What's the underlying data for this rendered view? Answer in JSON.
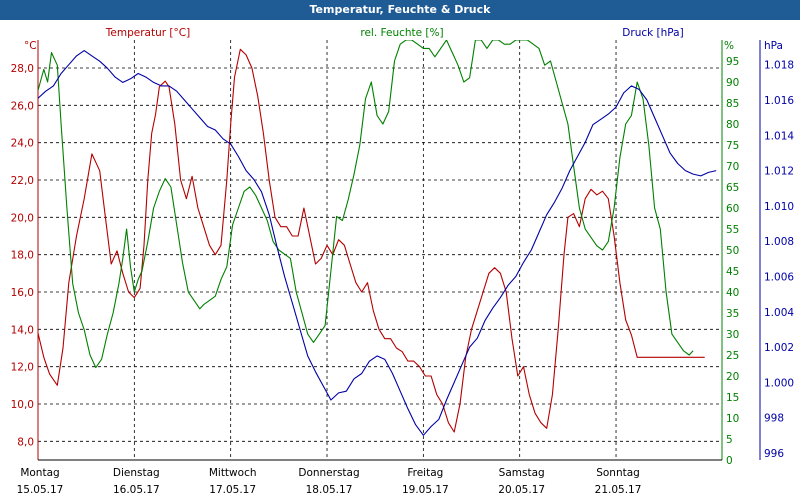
{
  "window": {
    "title": "Temperatur, Feuchte & Druck"
  },
  "colors": {
    "title_bar": "#1f5c96",
    "temperature": "#b40000",
    "humidity": "#008000",
    "pressure": "#0000a8",
    "grid": "#000000",
    "axis_text": "#000000"
  },
  "chart_data": {
    "type": "line",
    "title": "Temperatur, Feuchte & Druck",
    "grid": true,
    "x_labels": [
      {
        "day": "Montag",
        "date": "15.05.17"
      },
      {
        "day": "Dienstag",
        "date": "16.05.17"
      },
      {
        "day": "Mittwoch",
        "date": "17.05.17"
      },
      {
        "day": "Donnerstag",
        "date": "18.05.17"
      },
      {
        "day": "Freitag",
        "date": "19.05.17"
      },
      {
        "day": "Samstag",
        "date": "20.05.17"
      },
      {
        "day": "Sonntag",
        "date": "21.05.17"
      }
    ],
    "x_range": [
      0,
      7.1
    ],
    "axes": {
      "temperature": {
        "label": "Temperatur [°C]",
        "unit": "°C",
        "range": [
          7,
          29.5
        ],
        "ticks": [
          "8,0",
          "10,0",
          "12,0",
          "14,0",
          "16,0",
          "18,0",
          "20,0",
          "22,0",
          "24,0",
          "26,0",
          "28,0"
        ]
      },
      "humidity": {
        "label": "rel. Feuchte [%]",
        "unit": "%",
        "range": [
          0,
          100
        ],
        "ticks": [
          "0",
          "5",
          "10",
          "15",
          "20",
          "25",
          "30",
          "35",
          "40",
          "45",
          "50",
          "55",
          "60",
          "65",
          "70",
          "75",
          "80",
          "85",
          "90",
          "95"
        ]
      },
      "pressure": {
        "label": "Druck [hPa]",
        "unit": "hPa",
        "range": [
          995.6,
          1019.4
        ],
        "ticks": [
          "996",
          "998",
          "1.000",
          "1.002",
          "1.004",
          "1.006",
          "1.008",
          "1.010",
          "1.012",
          "1.014",
          "1.016",
          "1.018"
        ]
      }
    },
    "series": [
      {
        "name": "Temperatur [°C]",
        "axis": "temperature",
        "color": "#b40000",
        "x": [
          0,
          0.06,
          0.12,
          0.2,
          0.26,
          0.32,
          0.4,
          0.48,
          0.56,
          0.64,
          0.7,
          0.76,
          0.82,
          0.88,
          0.94,
          1.0,
          1.06,
          1.1,
          1.14,
          1.18,
          1.22,
          1.26,
          1.32,
          1.36,
          1.42,
          1.48,
          1.54,
          1.6,
          1.66,
          1.72,
          1.78,
          1.84,
          1.9,
          1.96,
          2.0,
          2.04,
          2.1,
          2.16,
          2.22,
          2.28,
          2.34,
          2.4,
          2.46,
          2.52,
          2.58,
          2.64,
          2.7,
          2.76,
          2.82,
          2.88,
          2.94,
          3.0,
          3.06,
          3.12,
          3.18,
          3.24,
          3.3,
          3.36,
          3.42,
          3.48,
          3.54,
          3.6,
          3.66,
          3.72,
          3.78,
          3.84,
          3.9,
          3.96,
          4.02,
          4.08,
          4.14,
          4.2,
          4.26,
          4.32,
          4.38,
          4.44,
          4.5,
          4.56,
          4.62,
          4.68,
          4.74,
          4.8,
          4.86,
          4.92,
          4.98,
          5.04,
          5.1,
          5.16,
          5.22,
          5.28,
          5.34,
          5.4,
          5.46,
          5.5,
          5.56,
          5.62,
          5.68,
          5.74,
          5.8,
          5.86,
          5.92,
          5.98,
          6.04,
          6.1,
          6.16,
          6.22,
          6.28,
          6.34,
          6.4,
          6.46,
          6.52,
          6.58,
          6.64,
          6.7,
          6.76,
          6.8,
          6.86,
          6.92
        ],
        "values": [
          13.8,
          12.5,
          11.6,
          11.0,
          13.0,
          16.5,
          19.0,
          21.0,
          23.4,
          22.5,
          20.0,
          17.5,
          18.2,
          17.0,
          16.0,
          15.7,
          16.2,
          18.5,
          22.0,
          24.5,
          25.5,
          27.0,
          27.3,
          27.0,
          25.0,
          22.0,
          21.0,
          22.2,
          20.5,
          19.5,
          18.5,
          18.0,
          18.5,
          22.0,
          25.0,
          27.5,
          29.0,
          28.7,
          28.0,
          26.5,
          24.5,
          22.0,
          20.0,
          19.5,
          19.5,
          19.0,
          19.0,
          20.5,
          19.0,
          17.5,
          17.8,
          18.5,
          18.0,
          18.8,
          18.5,
          17.5,
          16.5,
          16.0,
          16.5,
          15.0,
          14.0,
          13.5,
          13.5,
          13.0,
          12.8,
          12.3,
          12.3,
          12.0,
          11.5,
          11.5,
          10.5,
          10.0,
          9.0,
          8.5,
          10.0,
          12.5,
          14.0,
          15.0,
          16.0,
          17.0,
          17.3,
          17.0,
          16.0,
          13.5,
          11.5,
          12.0,
          10.5,
          9.5,
          9.0,
          8.7,
          10.5,
          14.0,
          18.0,
          20.0,
          20.2,
          19.5,
          21.0,
          21.5,
          21.2,
          21.4,
          21.0,
          19.0,
          16.5,
          14.5,
          13.7,
          12.5,
          12.5,
          12.5,
          12.5,
          12.5,
          12.5,
          12.5,
          12.5,
          12.5,
          12.5,
          12.5,
          12.5,
          12.5
        ]
      },
      {
        "name": "rel. Feuchte [%]",
        "axis": "humidity",
        "color": "#008000",
        "x": [
          0,
          0.06,
          0.1,
          0.14,
          0.2,
          0.24,
          0.3,
          0.36,
          0.42,
          0.48,
          0.54,
          0.6,
          0.66,
          0.72,
          0.78,
          0.84,
          0.88,
          0.92,
          0.96,
          1.0,
          1.04,
          1.08,
          1.14,
          1.2,
          1.26,
          1.32,
          1.38,
          1.44,
          1.5,
          1.56,
          1.62,
          1.68,
          1.72,
          1.78,
          1.84,
          1.9,
          1.96,
          2.02,
          2.08,
          2.14,
          2.2,
          2.26,
          2.32,
          2.38,
          2.44,
          2.5,
          2.56,
          2.62,
          2.68,
          2.74,
          2.8,
          2.86,
          2.92,
          2.98,
          3.04,
          3.1,
          3.16,
          3.22,
          3.28,
          3.34,
          3.4,
          3.46,
          3.52,
          3.58,
          3.64,
          3.7,
          3.76,
          3.82,
          3.88,
          3.94,
          4.0,
          4.06,
          4.12,
          4.18,
          4.24,
          4.3,
          4.36,
          4.42,
          4.48,
          4.54,
          4.6,
          4.66,
          4.72,
          4.78,
          4.84,
          4.9,
          4.96,
          5.02,
          5.08,
          5.14,
          5.2,
          5.26,
          5.32,
          5.38,
          5.44,
          5.5,
          5.56,
          5.62,
          5.68,
          5.74,
          5.8,
          5.86,
          5.92,
          5.98,
          6.04,
          6.1,
          6.16,
          6.22,
          6.28,
          6.34,
          6.4,
          6.46,
          6.52,
          6.58,
          6.64,
          6.7,
          6.76,
          6.8
        ],
        "values": [
          88,
          93,
          90,
          97,
          94,
          80,
          60,
          42,
          35,
          31,
          25,
          22,
          24,
          30,
          35,
          42,
          48,
          55,
          46,
          40,
          43,
          45,
          52,
          60,
          64,
          67,
          65,
          56,
          47,
          40,
          38,
          36,
          37,
          38,
          39,
          43,
          46,
          56,
          60,
          64,
          65,
          63,
          60,
          57,
          52,
          50,
          49,
          48,
          40,
          35,
          30,
          28,
          30,
          32,
          45,
          58,
          57,
          62,
          68,
          75,
          86,
          90,
          82,
          80,
          83,
          95,
          99,
          100,
          100,
          99,
          98,
          98,
          96,
          98,
          100,
          97,
          94,
          90,
          91,
          100,
          100,
          98,
          100,
          100,
          99,
          99,
          100,
          100,
          100,
          99,
          98,
          94,
          95,
          90,
          85,
          80,
          70,
          60,
          55,
          53,
          51,
          50,
          52,
          60,
          72,
          80,
          82,
          90,
          86,
          75,
          60,
          55,
          40,
          30,
          28,
          26,
          25,
          26
        ]
      },
      {
        "name": "Druck [hPa]",
        "axis": "pressure",
        "color": "#0000a8",
        "x": [
          0,
          0.08,
          0.16,
          0.24,
          0.32,
          0.4,
          0.48,
          0.56,
          0.64,
          0.72,
          0.8,
          0.88,
          0.96,
          1.04,
          1.12,
          1.2,
          1.28,
          1.36,
          1.44,
          1.52,
          1.6,
          1.68,
          1.76,
          1.84,
          1.92,
          2.0,
          2.08,
          2.16,
          2.24,
          2.32,
          2.4,
          2.48,
          2.56,
          2.64,
          2.72,
          2.8,
          2.88,
          2.96,
          3.04,
          3.12,
          3.2,
          3.28,
          3.36,
          3.44,
          3.52,
          3.6,
          3.68,
          3.76,
          3.84,
          3.92,
          4.0,
          4.08,
          4.16,
          4.24,
          4.32,
          4.4,
          4.48,
          4.56,
          4.64,
          4.72,
          4.8,
          4.88,
          4.96,
          5.04,
          5.12,
          5.2,
          5.28,
          5.36,
          5.44,
          5.52,
          5.6,
          5.68,
          5.76,
          5.84,
          5.92,
          6.0,
          6.08,
          6.16,
          6.24,
          6.32,
          6.4,
          6.48,
          6.56,
          6.64,
          6.72,
          6.8,
          6.88,
          6.96,
          7.04
        ],
        "values": [
          1016.1,
          1016.5,
          1016.8,
          1017.5,
          1018.0,
          1018.5,
          1018.8,
          1018.5,
          1018.2,
          1017.8,
          1017.3,
          1017.0,
          1017.2,
          1017.5,
          1017.3,
          1017.0,
          1016.8,
          1016.8,
          1016.5,
          1016.0,
          1015.5,
          1015.0,
          1014.5,
          1014.3,
          1013.8,
          1013.5,
          1012.8,
          1012.0,
          1011.5,
          1010.8,
          1009.5,
          1007.7,
          1006.0,
          1004.5,
          1003.0,
          1001.5,
          1000.6,
          999.8,
          999.0,
          999.4,
          999.5,
          1000.2,
          1000.5,
          1001.2,
          1001.5,
          1001.3,
          1000.5,
          999.5,
          998.5,
          997.6,
          997.0,
          997.5,
          997.9,
          999.0,
          1000.0,
          1001.0,
          1002.0,
          1002.5,
          1003.5,
          1004.2,
          1004.8,
          1005.5,
          1006.0,
          1006.8,
          1007.5,
          1008.5,
          1009.5,
          1010.2,
          1011.0,
          1012.0,
          1012.8,
          1013.6,
          1014.6,
          1014.9,
          1015.2,
          1015.6,
          1016.4,
          1016.8,
          1016.6,
          1016.0,
          1015.0,
          1014.0,
          1013.0,
          1012.4,
          1012.0,
          1011.8,
          1011.7,
          1011.9,
          1012.0
        ]
      }
    ]
  }
}
